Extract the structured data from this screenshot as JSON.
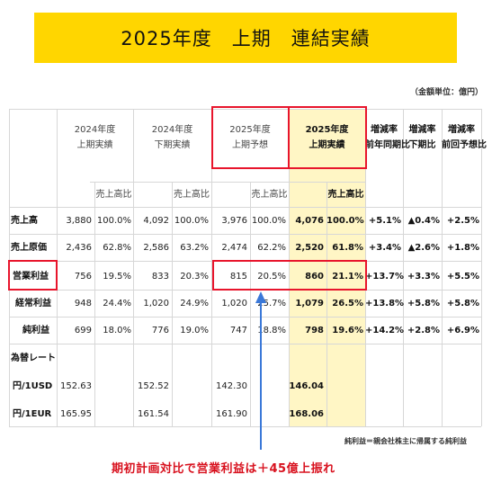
{
  "title": "2025年度　上期　連結実績",
  "unit_note": "（金額単位：億円）",
  "columns": {
    "h2024_1": "2024年度",
    "h2024_2": "上期実績",
    "s2024_1": "2024年度",
    "s2024_2": "下期実績",
    "f2025_1": "2025年度",
    "f2025_2": "上期予想",
    "a2025_1": "2025年度",
    "a2025_2": "上期実績",
    "yoy_1": "増減率",
    "yoy_2": "前年同期比",
    "hoh_1": "増減率",
    "hoh_2": "下期比",
    "vsf_1": "増減率",
    "vsf_2": "前回予想比",
    "ratio": "売上高比"
  },
  "rows": [
    {
      "label": "売上高",
      "v1": "3,880",
      "r1": "100.0%",
      "v2": "4,092",
      "r2": "100.0%",
      "v3": "3,976",
      "r3": "100.0%",
      "v4": "4,076",
      "r4": "100.0%",
      "c1": "+5.1%",
      "c2": "▲0.4%",
      "c3": "+2.5%"
    },
    {
      "label": "売上原価",
      "v1": "2,436",
      "r1": "62.8%",
      "v2": "2,586",
      "r2": "63.2%",
      "v3": "2,474",
      "r3": "62.2%",
      "v4": "2,520",
      "r4": "61.8%",
      "c1": "+3.4%",
      "c2": "▲2.6%",
      "c3": "+1.8%"
    },
    {
      "label": "営業利益",
      "v1": "756",
      "r1": "19.5%",
      "v2": "833",
      "r2": "20.3%",
      "v3": "815",
      "r3": "20.5%",
      "v4": "860",
      "r4": "21.1%",
      "c1": "+13.7%",
      "c2": "+3.3%",
      "c3": "+5.5%"
    },
    {
      "label": "経常利益",
      "v1": "948",
      "r1": "24.4%",
      "v2": "1,020",
      "r2": "24.9%",
      "v3": "1,020",
      "r3": "25.7%",
      "v4": "1,079",
      "r4": "26.5%",
      "c1": "+13.8%",
      "c2": "+5.8%",
      "c3": "+5.8%"
    },
    {
      "label": "純利益",
      "v1": "699",
      "r1": "18.0%",
      "v2": "776",
      "r2": "19.0%",
      "v3": "747",
      "r3": "18.8%",
      "v4": "798",
      "r4": "19.6%",
      "c1": "+14.2%",
      "c2": "+2.8%",
      "c3": "+6.9%"
    }
  ],
  "fx": {
    "header": "為替レート",
    "usd_label": "円/1USD",
    "eur_label": "円/1EUR",
    "usd": [
      "152.63",
      "152.52",
      "142.30",
      "146.04"
    ],
    "eur": [
      "165.95",
      "161.54",
      "161.90",
      "168.06"
    ]
  },
  "footnote": "純利益＝親会社株主に帰属する純利益",
  "caption": "期初計画対比で営業利益は＋45億上振れ",
  "colors": {
    "accent": "#ffd600",
    "highlight": "#fff6c5",
    "red": "#e8152c",
    "arrow": "#3a78d8"
  }
}
